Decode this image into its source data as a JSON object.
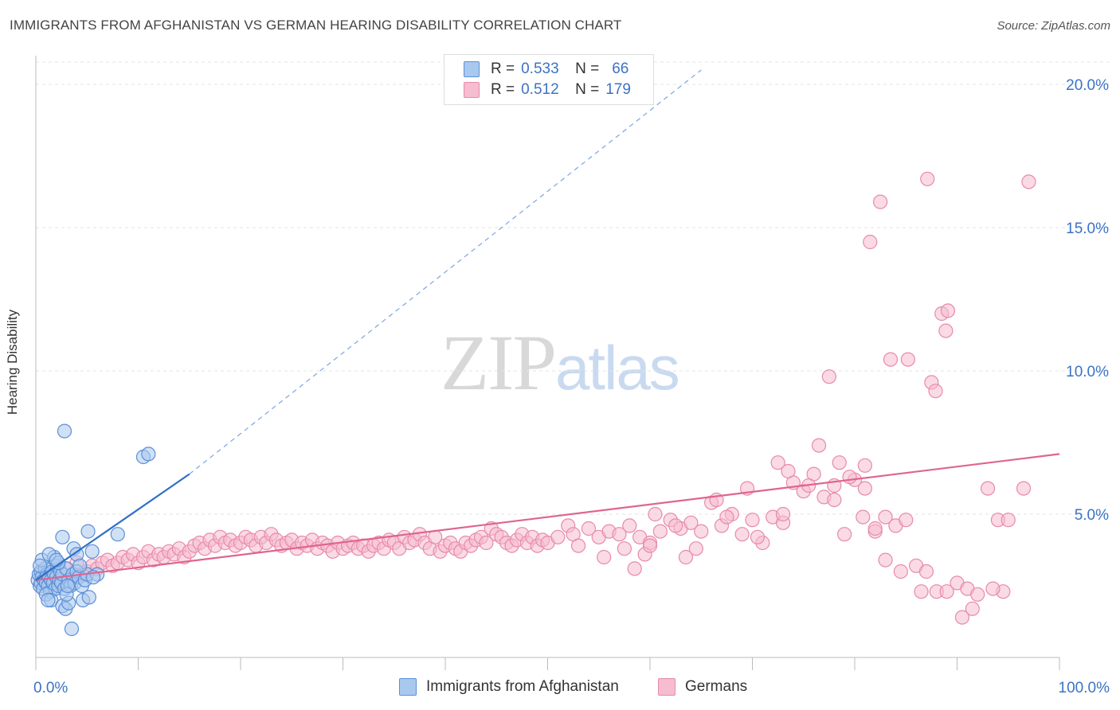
{
  "title": "IMMIGRANTS FROM AFGHANISTAN VS GERMAN HEARING DISABILITY CORRELATION CHART",
  "source": "Source: ZipAtlas.com",
  "watermark": {
    "zip": "ZIP",
    "atlas": "atlas"
  },
  "legend_stats": [
    {
      "r_label": "R =",
      "r_value": "0.533",
      "n_label": "N =",
      "n_value": "66"
    },
    {
      "r_label": "R =",
      "r_value": "0.512",
      "n_label": "N =",
      "n_value": "179"
    }
  ],
  "colors": {
    "blue_fill": "#a9c8ee",
    "blue_stroke": "#5b8fd6",
    "blue_line": "#2f6fc9",
    "pink_fill": "#f6bcd0",
    "pink_stroke": "#e78aab",
    "pink_line": "#e0648f",
    "grid": "#e3e3e3",
    "axis_text": "#3b73c4"
  },
  "chart_data": {
    "type": "scatter",
    "title": "IMMIGRANTS FROM AFGHANISTAN VS GERMAN HEARING DISABILITY CORRELATION CHART",
    "xlabel": "",
    "ylabel": "Hearing Disability",
    "xlim": [
      0,
      100
    ],
    "ylim": [
      0,
      21
    ],
    "x_tick_labels": [
      "0.0%",
      "100.0%"
    ],
    "y_ticks": [
      5,
      10,
      15,
      20
    ],
    "y_tick_labels": [
      "5.0%",
      "10.0%",
      "15.0%",
      "20.0%"
    ],
    "legend_position": "bottom",
    "series": [
      {
        "name": "Immigrants from Afghanistan",
        "r": 0.533,
        "n": 66,
        "trend": {
          "x0": 0,
          "y0": 2.7,
          "x1": 15,
          "y1": 6.4,
          "dashed_to_x": 65,
          "dashed_to_y": 20.5
        },
        "points": [
          [
            0.2,
            2.7
          ],
          [
            0.3,
            2.9
          ],
          [
            0.4,
            2.5
          ],
          [
            0.5,
            3.0
          ],
          [
            0.5,
            2.6
          ],
          [
            0.6,
            2.8
          ],
          [
            0.7,
            2.4
          ],
          [
            0.8,
            2.7
          ],
          [
            0.9,
            3.1
          ],
          [
            1.0,
            2.6
          ],
          [
            1.1,
            2.9
          ],
          [
            1.2,
            2.5
          ],
          [
            1.3,
            2.8
          ],
          [
            1.4,
            2.3
          ],
          [
            1.5,
            2.7
          ],
          [
            1.6,
            3.0
          ],
          [
            1.7,
            2.6
          ],
          [
            1.8,
            2.9
          ],
          [
            1.9,
            2.4
          ],
          [
            2.0,
            2.8
          ],
          [
            2.1,
            3.2
          ],
          [
            2.2,
            2.5
          ],
          [
            2.3,
            2.7
          ],
          [
            2.4,
            3.0
          ],
          [
            2.5,
            2.6
          ],
          [
            2.6,
            2.9
          ],
          [
            2.8,
            2.4
          ],
          [
            3.0,
            3.1
          ],
          [
            3.2,
            2.7
          ],
          [
            3.4,
            2.5
          ],
          [
            3.6,
            2.9
          ],
          [
            3.8,
            2.6
          ],
          [
            4.0,
            3.0
          ],
          [
            4.2,
            2.8
          ],
          [
            4.5,
            2.5
          ],
          [
            4.8,
            2.7
          ],
          [
            5.0,
            2.9
          ],
          [
            0.6,
            3.4
          ],
          [
            1.0,
            2.2
          ],
          [
            1.5,
            2.0
          ],
          [
            1.8,
            3.5
          ],
          [
            2.2,
            3.3
          ],
          [
            2.6,
            1.8
          ],
          [
            2.9,
            1.7
          ],
          [
            3.2,
            1.9
          ],
          [
            3.5,
            1.0
          ],
          [
            3.7,
            3.8
          ],
          [
            4.0,
            3.6
          ],
          [
            4.6,
            2.0
          ],
          [
            5.2,
            2.1
          ],
          [
            5.5,
            3.7
          ],
          [
            6.0,
            2.9
          ],
          [
            2.6,
            4.2
          ],
          [
            5.1,
            4.4
          ],
          [
            8.0,
            4.3
          ],
          [
            2.8,
            7.9
          ],
          [
            10.5,
            7.0
          ],
          [
            11.0,
            7.1
          ],
          [
            1.3,
            3.6
          ],
          [
            2.0,
            3.4
          ],
          [
            3.0,
            2.2
          ],
          [
            4.3,
            3.2
          ],
          [
            5.6,
            2.8
          ],
          [
            1.2,
            2.0
          ],
          [
            0.4,
            3.2
          ],
          [
            3.1,
            2.5
          ]
        ]
      },
      {
        "name": "Germans",
        "r": 0.512,
        "n": 179,
        "trend": {
          "x0": 0,
          "y0": 2.7,
          "x1": 100,
          "y1": 7.1
        },
        "points": [
          [
            1.0,
            2.9
          ],
          [
            1.5,
            2.7
          ],
          [
            2.0,
            3.0
          ],
          [
            2.5,
            2.6
          ],
          [
            3.0,
            3.1
          ],
          [
            3.5,
            2.8
          ],
          [
            4.0,
            3.3
          ],
          [
            4.5,
            2.9
          ],
          [
            5.0,
            3.0
          ],
          [
            5.5,
            3.2
          ],
          [
            6.0,
            3.1
          ],
          [
            6.5,
            3.3
          ],
          [
            7.0,
            3.4
          ],
          [
            7.5,
            3.2
          ],
          [
            8.0,
            3.3
          ],
          [
            8.5,
            3.5
          ],
          [
            9.0,
            3.4
          ],
          [
            9.5,
            3.6
          ],
          [
            10.0,
            3.3
          ],
          [
            10.5,
            3.5
          ],
          [
            11.0,
            3.7
          ],
          [
            11.5,
            3.4
          ],
          [
            12.0,
            3.6
          ],
          [
            12.5,
            3.5
          ],
          [
            13.0,
            3.7
          ],
          [
            13.5,
            3.6
          ],
          [
            14.0,
            3.8
          ],
          [
            14.5,
            3.5
          ],
          [
            15.0,
            3.7
          ],
          [
            15.5,
            3.9
          ],
          [
            16.0,
            4.0
          ],
          [
            16.5,
            3.8
          ],
          [
            17.0,
            4.1
          ],
          [
            17.5,
            3.9
          ],
          [
            18.0,
            4.2
          ],
          [
            18.5,
            4.0
          ],
          [
            19.0,
            4.1
          ],
          [
            19.5,
            3.9
          ],
          [
            20.0,
            4.0
          ],
          [
            20.5,
            4.2
          ],
          [
            21.0,
            4.1
          ],
          [
            21.5,
            3.9
          ],
          [
            22.0,
            4.2
          ],
          [
            22.5,
            4.0
          ],
          [
            23.0,
            4.3
          ],
          [
            23.5,
            4.1
          ],
          [
            24.0,
            3.9
          ],
          [
            24.5,
            4.0
          ],
          [
            25.0,
            4.1
          ],
          [
            25.5,
            3.8
          ],
          [
            26.0,
            4.0
          ],
          [
            26.5,
            3.9
          ],
          [
            27.0,
            4.1
          ],
          [
            27.5,
            3.8
          ],
          [
            28.0,
            4.0
          ],
          [
            28.5,
            3.9
          ],
          [
            29.0,
            3.7
          ],
          [
            29.5,
            4.0
          ],
          [
            30.0,
            3.8
          ],
          [
            30.5,
            3.9
          ],
          [
            31.0,
            4.0
          ],
          [
            31.5,
            3.8
          ],
          [
            32.0,
            3.9
          ],
          [
            32.5,
            3.7
          ],
          [
            33.0,
            3.9
          ],
          [
            33.5,
            4.0
          ],
          [
            34.0,
            3.8
          ],
          [
            34.5,
            4.1
          ],
          [
            35.0,
            4.0
          ],
          [
            35.5,
            3.8
          ],
          [
            36.0,
            4.2
          ],
          [
            36.5,
            4.0
          ],
          [
            37.0,
            4.1
          ],
          [
            37.5,
            4.3
          ],
          [
            38.0,
            4.0
          ],
          [
            38.5,
            3.8
          ],
          [
            39.0,
            4.2
          ],
          [
            39.5,
            3.7
          ],
          [
            40.0,
            3.9
          ],
          [
            40.5,
            4.0
          ],
          [
            41.0,
            3.8
          ],
          [
            41.5,
            3.7
          ],
          [
            42.0,
            4.0
          ],
          [
            42.5,
            3.9
          ],
          [
            43.0,
            4.1
          ],
          [
            43.5,
            4.2
          ],
          [
            44.0,
            4.0
          ],
          [
            44.5,
            4.5
          ],
          [
            45.0,
            4.3
          ],
          [
            45.5,
            4.2
          ],
          [
            46.0,
            4.0
          ],
          [
            46.5,
            3.9
          ],
          [
            47.0,
            4.1
          ],
          [
            47.5,
            4.3
          ],
          [
            48.0,
            4.0
          ],
          [
            48.5,
            4.2
          ],
          [
            49.0,
            3.9
          ],
          [
            49.5,
            4.1
          ],
          [
            50.0,
            4.0
          ],
          [
            51.0,
            4.2
          ],
          [
            52.0,
            4.6
          ],
          [
            52.5,
            4.3
          ],
          [
            53.0,
            3.9
          ],
          [
            54.0,
            4.5
          ],
          [
            55.0,
            4.2
          ],
          [
            56.0,
            4.4
          ],
          [
            57.0,
            4.3
          ],
          [
            58.0,
            4.6
          ],
          [
            59.0,
            4.2
          ],
          [
            60.0,
            4.0
          ],
          [
            60.5,
            5.0
          ],
          [
            61.0,
            4.4
          ],
          [
            62.0,
            4.8
          ],
          [
            63.0,
            4.5
          ],
          [
            64.0,
            4.7
          ],
          [
            65.0,
            4.4
          ],
          [
            66.0,
            5.4
          ],
          [
            67.0,
            4.6
          ],
          [
            68.0,
            5.0
          ],
          [
            69.0,
            4.3
          ],
          [
            70.0,
            4.8
          ],
          [
            71.0,
            4.0
          ],
          [
            72.0,
            4.9
          ],
          [
            73.0,
            4.7
          ],
          [
            74.0,
            6.1
          ],
          [
            75.0,
            5.8
          ],
          [
            76.0,
            6.4
          ],
          [
            77.0,
            5.6
          ],
          [
            78.0,
            6.0
          ],
          [
            79.0,
            4.3
          ],
          [
            80.0,
            6.2
          ],
          [
            81.0,
            5.9
          ],
          [
            82.0,
            4.4
          ],
          [
            83.0,
            3.4
          ],
          [
            84.0,
            4.6
          ],
          [
            85.0,
            4.8
          ],
          [
            86.0,
            3.2
          ],
          [
            87.0,
            3.0
          ],
          [
            88.0,
            2.3
          ],
          [
            89.0,
            2.3
          ],
          [
            90.0,
            2.6
          ],
          [
            91.0,
            2.4
          ],
          [
            92.0,
            2.2
          ],
          [
            93.0,
            5.9
          ],
          [
            94.0,
            4.8
          ],
          [
            55.5,
            3.5
          ],
          [
            57.5,
            3.8
          ],
          [
            58.5,
            3.1
          ],
          [
            59.5,
            3.6
          ],
          [
            62.5,
            4.6
          ],
          [
            63.5,
            3.5
          ],
          [
            64.5,
            3.8
          ],
          [
            67.5,
            4.9
          ],
          [
            69.5,
            5.9
          ],
          [
            72.5,
            6.8
          ],
          [
            73.5,
            6.5
          ],
          [
            76.5,
            7.4
          ],
          [
            77.5,
            9.8
          ],
          [
            78.5,
            6.8
          ],
          [
            81.5,
            14.5
          ],
          [
            80.8,
            4.9
          ],
          [
            82.5,
            15.9
          ],
          [
            83.5,
            10.4
          ],
          [
            85.2,
            10.4
          ],
          [
            87.5,
            9.6
          ],
          [
            87.9,
            9.3
          ],
          [
            87.1,
            16.7
          ],
          [
            88.5,
            12.0
          ],
          [
            88.9,
            11.4
          ],
          [
            89.1,
            12.1
          ],
          [
            90.5,
            1.4
          ],
          [
            91.5,
            1.7
          ],
          [
            97.0,
            16.6
          ],
          [
            96.5,
            5.9
          ],
          [
            95.0,
            4.8
          ],
          [
            94.5,
            2.3
          ],
          [
            93.5,
            2.4
          ],
          [
            60.0,
            3.9
          ],
          [
            66.5,
            5.5
          ],
          [
            70.5,
            4.2
          ],
          [
            73.0,
            5.0
          ],
          [
            75.5,
            6.0
          ],
          [
            78.0,
            5.5
          ],
          [
            79.5,
            6.3
          ],
          [
            81.0,
            6.7
          ],
          [
            82.0,
            4.5
          ],
          [
            83.0,
            4.9
          ],
          [
            84.5,
            3.0
          ],
          [
            86.5,
            2.3
          ]
        ]
      }
    ]
  },
  "legend_bottom": [
    {
      "label": "Immigrants from Afghanistan"
    },
    {
      "label": "Germans"
    }
  ]
}
